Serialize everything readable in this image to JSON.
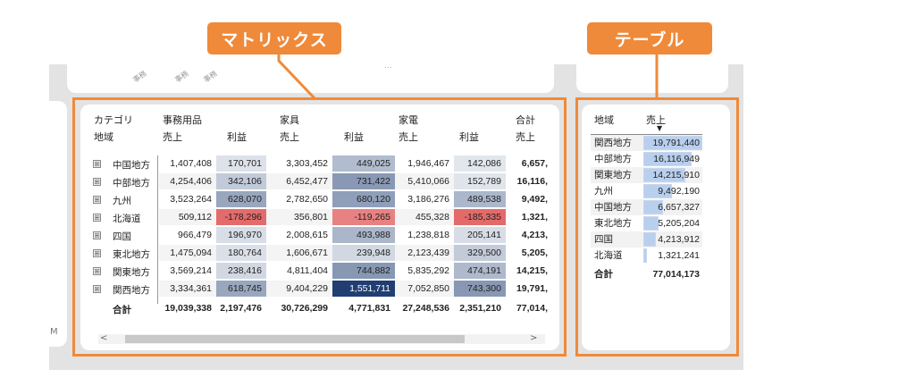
{
  "callouts": {
    "matrix": "マトリックス",
    "table": "テーブル"
  },
  "background": {
    "left_stub_text": "M",
    "rotated_labels": [
      "事務",
      "事務",
      "事務"
    ],
    "dots": "..."
  },
  "matrix": {
    "header_row1": {
      "category": "カテゴリ",
      "groups": [
        "事務用品",
        "家具",
        "家電",
        "合計"
      ]
    },
    "header_row2": {
      "region": "地域",
      "measures": [
        "売上",
        "利益",
        "売上",
        "利益",
        "売上",
        "利益",
        "売上"
      ]
    },
    "expand_icon": "⊞",
    "rows": [
      {
        "region": "中国地方",
        "values": [
          "1,407,408",
          "170,701",
          "3,303,452",
          "449,025",
          "1,946,467",
          "142,086",
          "6,657,"
        ]
      },
      {
        "region": "中部地方",
        "values": [
          "4,254,406",
          "342,106",
          "6,452,477",
          "731,422",
          "5,410,066",
          "152,789",
          "16,116,"
        ]
      },
      {
        "region": "九州",
        "values": [
          "3,523,264",
          "628,070",
          "2,782,650",
          "680,120",
          "3,186,276",
          "489,538",
          "9,492,"
        ]
      },
      {
        "region": "北海道",
        "values": [
          "509,112",
          "-178,296",
          "356,801",
          "-119,265",
          "455,328",
          "-185,335",
          "1,321,"
        ]
      },
      {
        "region": "四国",
        "values": [
          "966,479",
          "196,970",
          "2,008,615",
          "493,988",
          "1,238,818",
          "205,141",
          "4,213,"
        ]
      },
      {
        "region": "東北地方",
        "values": [
          "1,475,094",
          "180,764",
          "1,606,671",
          "239,948",
          "2,123,439",
          "329,500",
          "5,205,"
        ]
      },
      {
        "region": "関東地方",
        "values": [
          "3,569,214",
          "238,416",
          "4,811,404",
          "744,882",
          "5,835,292",
          "474,191",
          "14,215,"
        ]
      },
      {
        "region": "関西地方",
        "values": [
          "3,334,361",
          "618,745",
          "9,404,229",
          "1,551,711",
          "7,052,850",
          "743,300",
          "19,791,"
        ]
      }
    ],
    "total": {
      "label": "合計",
      "values": [
        "19,039,338",
        "2,197,476",
        "30,726,299",
        "4,771,831",
        "27,248,536",
        "2,351,210",
        "77,014,"
      ]
    },
    "scroll": {
      "left": "<",
      "right": ">"
    }
  },
  "table": {
    "headers": {
      "region": "地域",
      "sales": "売上"
    },
    "sort_icon": "▼",
    "rows": [
      {
        "region": "関西地方",
        "sales": "19,791,440",
        "fraction": 1.0
      },
      {
        "region": "中部地方",
        "sales": "16,116,949",
        "fraction": 0.814
      },
      {
        "region": "関東地方",
        "sales": "14,215,910",
        "fraction": 0.718
      },
      {
        "region": "九州",
        "sales": "9,492,190",
        "fraction": 0.48
      },
      {
        "region": "中国地方",
        "sales": "6,657,327",
        "fraction": 0.336
      },
      {
        "region": "東北地方",
        "sales": "5,205,204",
        "fraction": 0.263
      },
      {
        "region": "四国",
        "sales": "4,213,912",
        "fraction": 0.213
      },
      {
        "region": "北海道",
        "sales": "1,321,241",
        "fraction": 0.067
      }
    ],
    "total": {
      "label": "合計",
      "sales": "77,014,173"
    }
  },
  "heat_colors": {
    "positive_strong": "#203e72",
    "positive": "#7d8fb0",
    "negative": "#e46a6a",
    "neutral": "#ffffff"
  }
}
